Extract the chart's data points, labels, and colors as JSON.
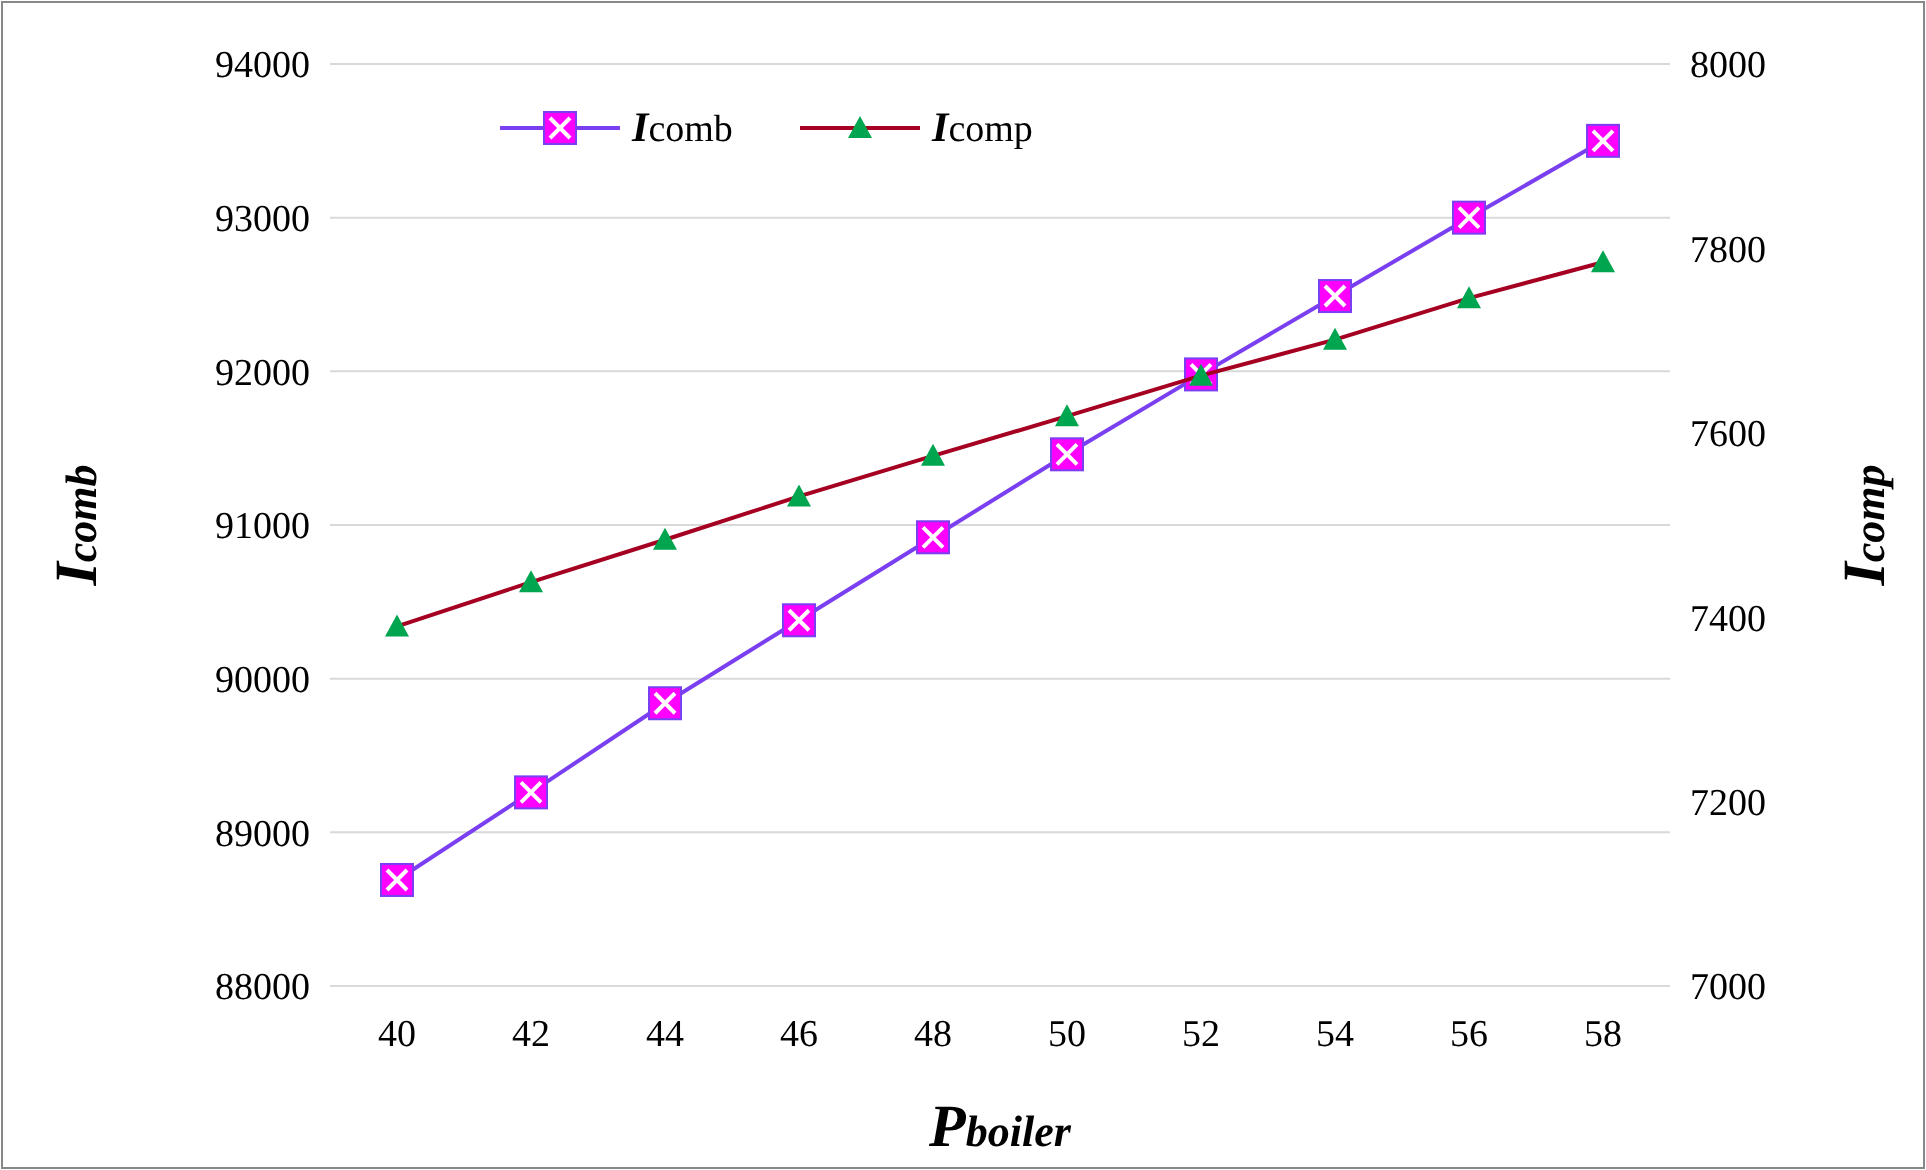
{
  "chart_data": {
    "type": "line",
    "xlabel": "Pboiler",
    "ylabel": "Icomb",
    "y2label": "Icomp",
    "categories": [
      "40",
      "42",
      "44",
      "46",
      "48",
      "50",
      "52",
      "54",
      "56",
      "58"
    ],
    "series": [
      {
        "name": "Icomb",
        "color": "#7b3ff2",
        "marker": "square",
        "values": [
          88690,
          89260,
          89840,
          90380,
          90920,
          91460,
          91980,
          92490,
          93000,
          93500
        ]
      },
      {
        "name": "Icomp",
        "color": "#a50021",
        "marker": "triangle",
        "axis": "y2",
        "values": [
          7390,
          7438,
          7484,
          7531,
          7575,
          7618,
          7662,
          7701,
          7746,
          7785
        ]
      }
    ],
    "ylim": [
      88000,
      94000
    ],
    "yticks": [
      88000,
      89000,
      90000,
      91000,
      92000,
      93000,
      94000
    ],
    "y2lim": [
      7000,
      8000
    ],
    "y2ticks": [
      7000,
      7200,
      7400,
      7600,
      7800,
      8000
    ],
    "grid": "y",
    "legend": "top left"
  }
}
